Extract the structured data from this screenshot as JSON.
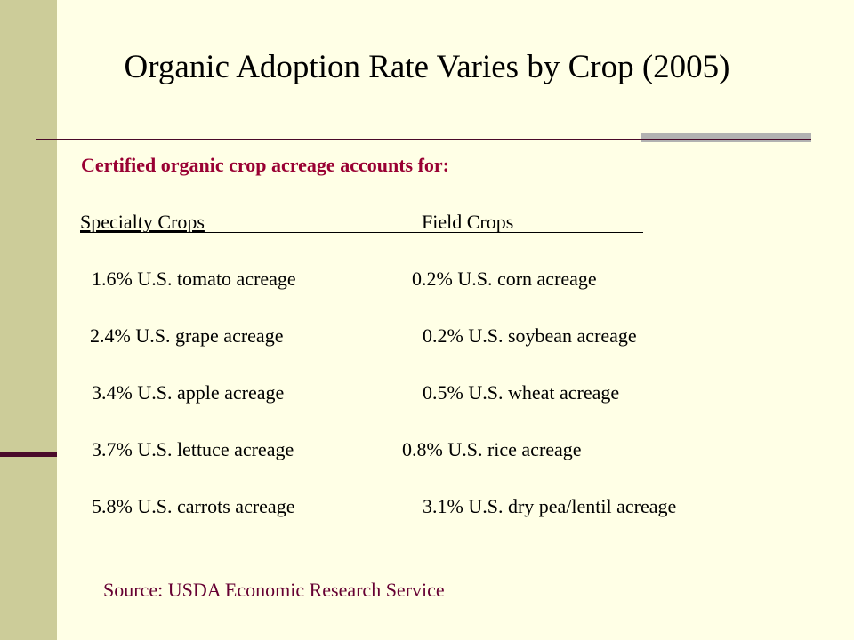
{
  "colors": {
    "background": "#FFFFE6",
    "side_bar": "#CCCC99",
    "accent": "#4A0A2A",
    "divider_gray": "#B2B2B2",
    "subtitle_text": "#990033",
    "source_text": "#660033"
  },
  "slide": {
    "title": "Organic Adoption Rate Varies by Crop (2005)",
    "subtitle": "Certified organic crop acreage accounts for:",
    "headers": {
      "specialty": "Specialty Crops",
      "field": "Field Crops"
    },
    "specialty_crops": [
      "1.6% U.S. tomato acreage",
      "2.4% U.S. grape acreage",
      "3.4% U.S. apple acreage",
      "3.7% U.S. lettuce acreage",
      "5.8% U.S. carrots acreage"
    ],
    "field_crops": [
      "0.2% U.S. corn acreage",
      "0.2% U.S. soybean acreage",
      "0.5% U.S. wheat acreage",
      "0.8% U.S. rice acreage",
      "3.1% U.S. dry pea/lentil acreage"
    ],
    "source": "Source: USDA Economic Research Service"
  }
}
